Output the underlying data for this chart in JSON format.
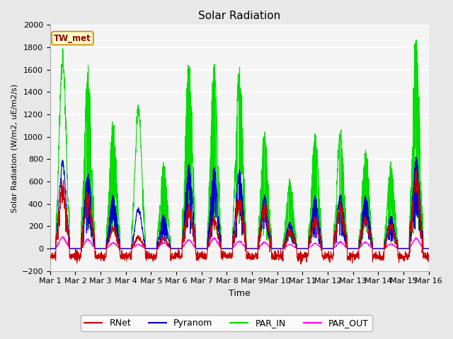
{
  "title": "Solar Radiation",
  "ylabel": "Solar Radiation (W/m2, uE/m2/s)",
  "xlabel": "Time",
  "annotation": "TW_met",
  "ylim": [
    -200,
    2000
  ],
  "fig_bg": "#e8e8e8",
  "plot_bg": "#f0f0f0",
  "series": {
    "RNet": {
      "color": "#cc0000",
      "lw": 0.8
    },
    "Pyranom": {
      "color": "#0000cc",
      "lw": 0.8
    },
    "PAR_IN": {
      "color": "#00dd00",
      "lw": 0.8
    },
    "PAR_OUT": {
      "color": "#ff00ff",
      "lw": 0.8
    }
  },
  "xtick_labels": [
    "Mar 1",
    "Mar 2",
    "Mar 3",
    "Mar 4",
    "Mar 5",
    "Mar 6",
    "Mar 7",
    "Mar 8",
    "Mar 9",
    "Mar 10",
    "Mar 11",
    "Mar 12",
    "Mar 13",
    "Mar 14",
    "Mar 15",
    "Mar 16"
  ],
  "num_days": 15,
  "pts_per_day": 144,
  "legend_entries": [
    "RNet",
    "Pyranom",
    "PAR_IN",
    "PAR_OUT"
  ],
  "legend_colors": [
    "#cc0000",
    "#0000cc",
    "#00dd00",
    "#ff00ff"
  ],
  "par_in_peaks": [
    1720,
    1550,
    1100,
    1230,
    740,
    1650,
    1580,
    1580,
    1000,
    590,
    1000,
    1020,
    850,
    730,
    1840
  ],
  "pyranom_peaks": [
    760,
    660,
    460,
    350,
    290,
    740,
    700,
    680,
    460,
    230,
    440,
    470,
    460,
    290,
    810
  ],
  "rnet_peaks": [
    520,
    460,
    180,
    100,
    90,
    350,
    250,
    420,
    340,
    150,
    260,
    350,
    250,
    200,
    600
  ],
  "par_out_peaks": [
    100,
    80,
    50,
    35,
    50,
    75,
    90,
    65,
    55,
    35,
    45,
    60,
    55,
    40,
    90
  ]
}
